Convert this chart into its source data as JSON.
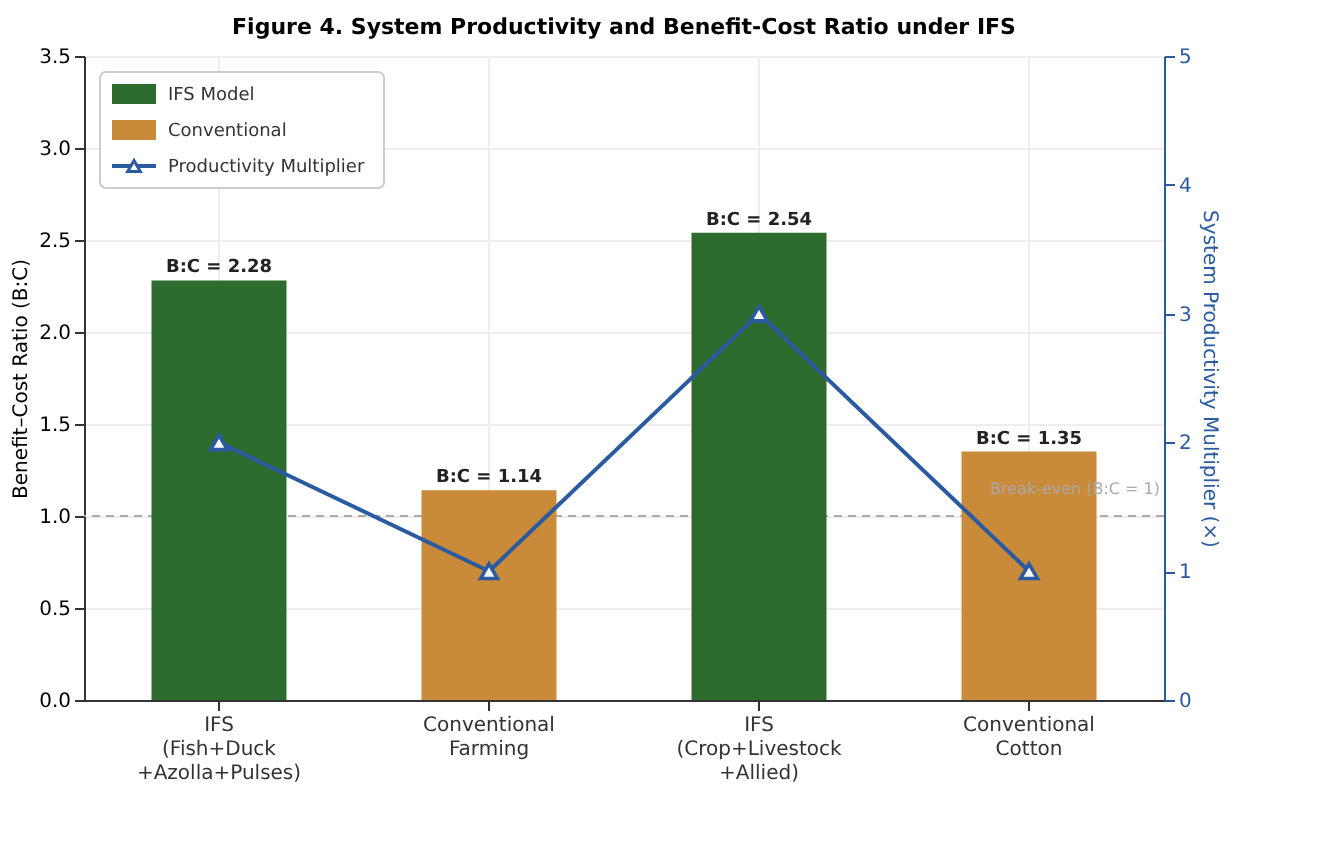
{
  "chart_data": {
    "type": "bar",
    "title": "Figure 4. System Productivity and Benefit-Cost Ratio under IFS",
    "categories": [
      "IFS\n(Fish+Duck\n+Azolla+Pulses)",
      "Conventional\nFarming",
      "IFS\n(Crop+Livestock\n+Allied)",
      "Conventional\nCotton"
    ],
    "series": [
      {
        "name": "IFS Model",
        "color": "#2e6b2e",
        "values": [
          2.28,
          null,
          2.54,
          null
        ],
        "value_labels": [
          "B:C = 2.28",
          null,
          "B:C = 2.54",
          null
        ]
      },
      {
        "name": "Conventional",
        "color": "#c98a3a",
        "values": [
          null,
          1.14,
          null,
          1.35
        ],
        "value_labels": [
          null,
          "B:C = 1.14",
          null,
          "B:C = 1.35"
        ]
      },
      {
        "name": "Productivity Multiplier",
        "type": "line",
        "axis": "y2",
        "color": "#2a5aa0",
        "marker": "triangle",
        "values": [
          2,
          1,
          3,
          1
        ]
      }
    ],
    "ylabel": "Benefit–Cost Ratio (B:C)",
    "y2label": "System Productivity Multiplier (×)",
    "ylim": [
      0,
      3.5
    ],
    "yticks": [
      {
        "value": 0,
        "label": "0.0"
      },
      0.5,
      {
        "value": 1,
        "label": "1.0"
      },
      1.5,
      {
        "value": 2,
        "label": "2.0"
      },
      2.5,
      {
        "value": 3,
        "label": "3.0"
      },
      3.5
    ],
    "y2lim": [
      0,
      5
    ],
    "y2ticks": [
      0,
      1,
      2,
      3,
      4,
      5
    ],
    "ref_lines": [
      {
        "axis": "y",
        "value": 1,
        "label": "Break-even (B:C = 1)",
        "color": "#aaaaaa",
        "line_style": "dashed"
      }
    ],
    "grid": true,
    "legend": "top left"
  }
}
